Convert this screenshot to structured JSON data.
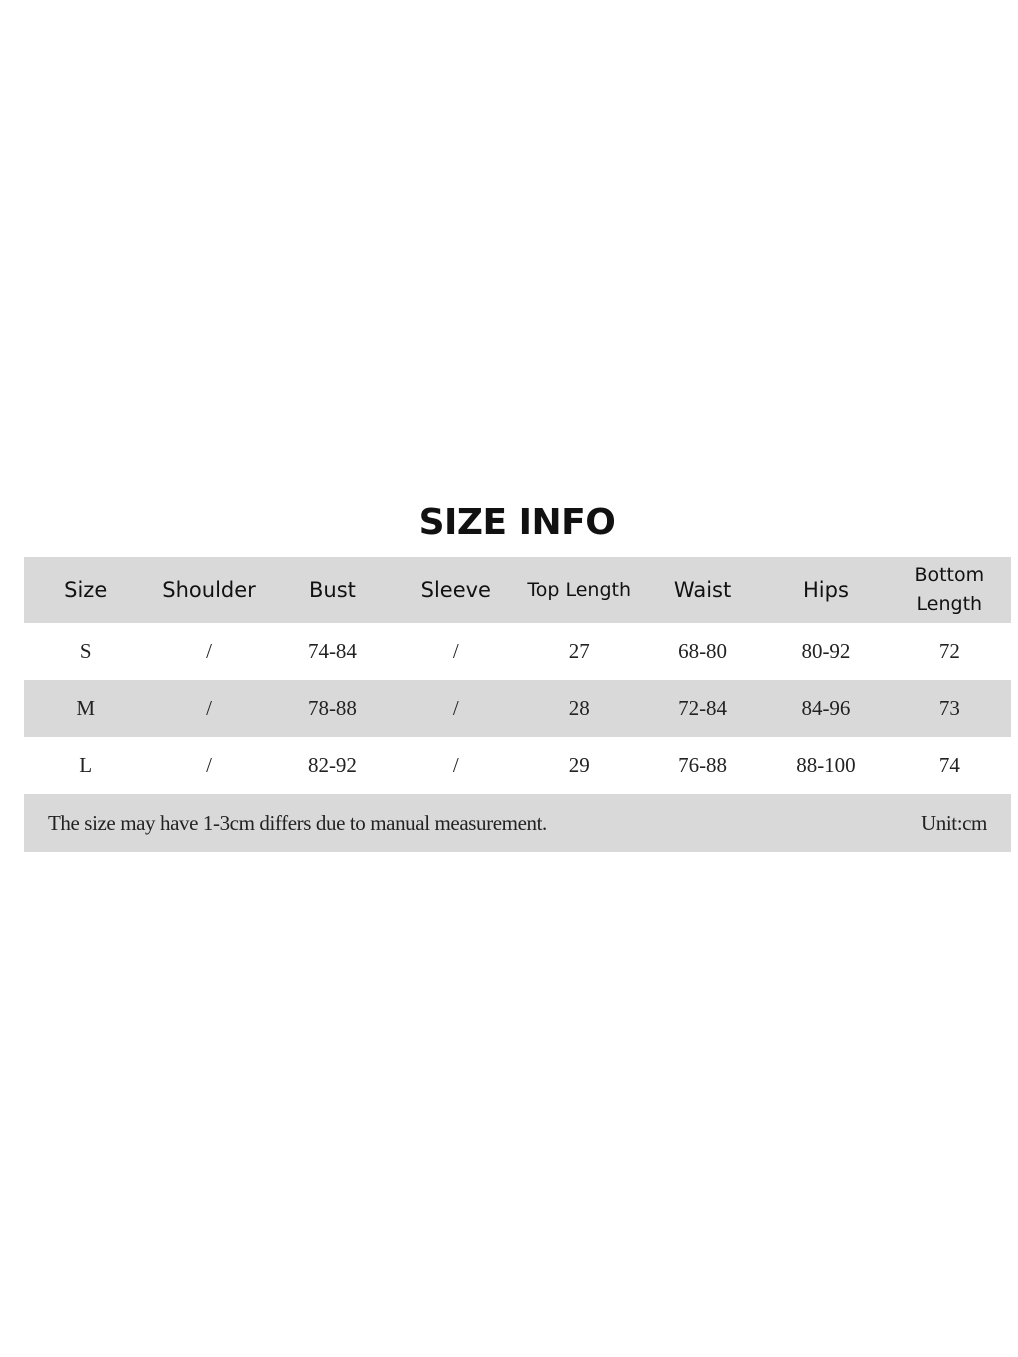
{
  "title": "SIZE INFO",
  "table": {
    "headers": [
      "Size",
      "Shoulder",
      "Bust",
      "Sleeve",
      "Top Length",
      "Waist",
      "Hips",
      "Bottom Length"
    ],
    "rows": [
      [
        "S",
        "/",
        "74-84",
        "/",
        "27",
        "68-80",
        "80-92",
        "72"
      ],
      [
        "M",
        "/",
        "78-88",
        "/",
        "28",
        "72-84",
        "84-96",
        "73"
      ],
      [
        "L",
        "/",
        "82-92",
        "/",
        "29",
        "76-88",
        "88-100",
        "74"
      ]
    ]
  },
  "footer": {
    "note": "The size may have 1-3cm differs due to manual measurement.",
    "unit": "Unit:cm"
  }
}
